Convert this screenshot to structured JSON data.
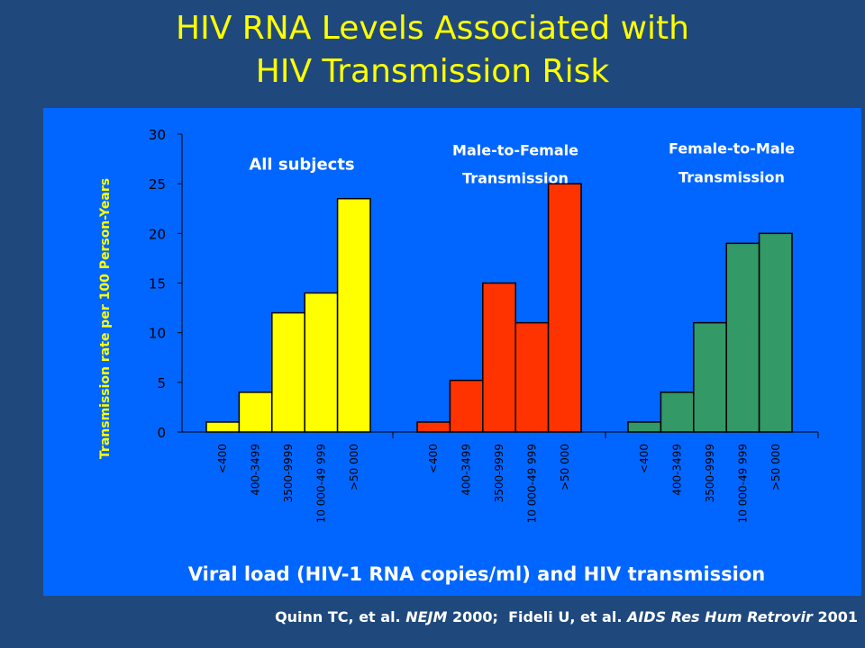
{
  "title": {
    "line1": "HIV RNA Levels Associated with",
    "line2": "HIV Transmission Risk"
  },
  "citation": {
    "author1": "Quinn TC, et al.",
    "journal1": "NEJM",
    "year1": "2000;",
    "author2": "Fideli U, et al.",
    "journal2": "AIDS Res Hum Retrovir",
    "year2": "2001"
  },
  "colors": {
    "background": "#1f497d",
    "panel": "#0066ff",
    "title": "#ffff00",
    "all_subjects": "#ffff00",
    "male_to_female": "#ff3300",
    "female_to_male": "#339966"
  },
  "chart_data": {
    "type": "bar",
    "ylabel": "Transmission rate per 100 Person-Years",
    "xlabel": "Viral load (HIV-1 RNA copies/ml) and HIV transmission",
    "ylim": [
      0,
      30
    ],
    "yticks": [
      "0",
      "5",
      "10",
      "15",
      "20",
      "25",
      "30"
    ],
    "categories": [
      "<400",
      "400-3499",
      "3500-9999",
      "10 000-49 999",
      ">50 000"
    ],
    "legend": "none",
    "grid": false,
    "groups": [
      {
        "label_lines": [
          "All subjects"
        ],
        "color": "#ffff00",
        "values": [
          1,
          4,
          12,
          14,
          23.5
        ]
      },
      {
        "label_lines": [
          "Male-to-Female",
          "Transmission"
        ],
        "color": "#ff3300",
        "values": [
          1,
          5.2,
          15,
          11,
          25
        ]
      },
      {
        "label_lines": [
          "Female-to-Male",
          "Transmission"
        ],
        "color": "#339966",
        "values": [
          1,
          4,
          11,
          19,
          20
        ]
      }
    ]
  }
}
